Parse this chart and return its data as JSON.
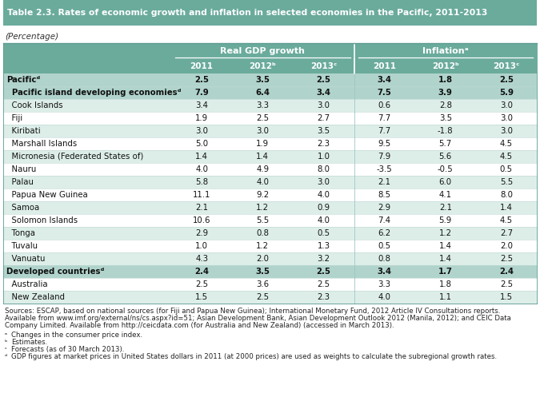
{
  "title": "Table 2.3. Rates of economic growth and inflation in selected economies in the Pacific, 2011-2013",
  "subtitle": "(Percentage)",
  "header_bg": "#6aab9c",
  "row_bg_light": "#ddeee9",
  "row_bg_white": "#ffffff",
  "bold_row_bg": "#b0d4cc",
  "col_headers": [
    "",
    "2011",
    "2012ᵇ",
    "2013ᶜ",
    "2011",
    "2012ᵇ",
    "2013ᶜ"
  ],
  "rows": [
    {
      "name": "Pacificᵈ",
      "bold": true,
      "indent": 0,
      "values": [
        "2.5",
        "3.5",
        "2.5",
        "3.4",
        "1.8",
        "2.5"
      ],
      "row_type": "bold_top"
    },
    {
      "name": "  Pacific island developing economiesᵈ",
      "bold": true,
      "indent": 1,
      "values": [
        "7.9",
        "6.4",
        "3.4",
        "7.5",
        "3.9",
        "5.9"
      ],
      "row_type": "bold_sub"
    },
    {
      "name": "  Cook Islands",
      "bold": false,
      "indent": 2,
      "values": [
        "3.4",
        "3.3",
        "3.0",
        "0.6",
        "2.8",
        "3.0"
      ],
      "row_type": "light"
    },
    {
      "name": "  Fiji",
      "bold": false,
      "indent": 2,
      "values": [
        "1.9",
        "2.5",
        "2.7",
        "7.7",
        "3.5",
        "3.0"
      ],
      "row_type": "white"
    },
    {
      "name": "  Kiribati",
      "bold": false,
      "indent": 2,
      "values": [
        "3.0",
        "3.0",
        "3.5",
        "7.7",
        "-1.8",
        "3.0"
      ],
      "row_type": "light"
    },
    {
      "name": "  Marshall Islands",
      "bold": false,
      "indent": 2,
      "values": [
        "5.0",
        "1.9",
        "2.3",
        "9.5",
        "5.7",
        "4.5"
      ],
      "row_type": "white"
    },
    {
      "name": "  Micronesia (Federated States of)",
      "bold": false,
      "indent": 2,
      "values": [
        "1.4",
        "1.4",
        "1.0",
        "7.9",
        "5.6",
        "4.5"
      ],
      "row_type": "light"
    },
    {
      "name": "  Nauru",
      "bold": false,
      "indent": 2,
      "values": [
        "4.0",
        "4.9",
        "8.0",
        "-3.5",
        "-0.5",
        "0.5"
      ],
      "row_type": "white"
    },
    {
      "name": "  Palau",
      "bold": false,
      "indent": 2,
      "values": [
        "5.8",
        "4.0",
        "3.0",
        "2.1",
        "6.0",
        "5.5"
      ],
      "row_type": "light"
    },
    {
      "name": "  Papua New Guinea",
      "bold": false,
      "indent": 2,
      "values": [
        "11.1",
        "9.2",
        "4.0",
        "8.5",
        "4.1",
        "8.0"
      ],
      "row_type": "white"
    },
    {
      "name": "  Samoa",
      "bold": false,
      "indent": 2,
      "values": [
        "2.1",
        "1.2",
        "0.9",
        "2.9",
        "2.1",
        "1.4"
      ],
      "row_type": "light"
    },
    {
      "name": "  Solomon Islands",
      "bold": false,
      "indent": 2,
      "values": [
        "10.6",
        "5.5",
        "4.0",
        "7.4",
        "5.9",
        "4.5"
      ],
      "row_type": "white"
    },
    {
      "name": "  Tonga",
      "bold": false,
      "indent": 2,
      "values": [
        "2.9",
        "0.8",
        "0.5",
        "6.2",
        "1.2",
        "2.7"
      ],
      "row_type": "light"
    },
    {
      "name": "  Tuvalu",
      "bold": false,
      "indent": 2,
      "values": [
        "1.0",
        "1.2",
        "1.3",
        "0.5",
        "1.4",
        "2.0"
      ],
      "row_type": "white"
    },
    {
      "name": "  Vanuatu",
      "bold": false,
      "indent": 2,
      "values": [
        "4.3",
        "2.0",
        "3.2",
        "0.8",
        "1.4",
        "2.5"
      ],
      "row_type": "light"
    },
    {
      "name": "Developed countriesᵈ",
      "bold": true,
      "indent": 0,
      "values": [
        "2.4",
        "3.5",
        "2.5",
        "3.4",
        "1.7",
        "2.4"
      ],
      "row_type": "bold_top"
    },
    {
      "name": "  Australia",
      "bold": false,
      "indent": 1,
      "values": [
        "2.5",
        "3.6",
        "2.5",
        "3.3",
        "1.8",
        "2.5"
      ],
      "row_type": "white"
    },
    {
      "name": "  New Zealand",
      "bold": false,
      "indent": 1,
      "values": [
        "1.5",
        "2.5",
        "2.3",
        "4.0",
        "1.1",
        "1.5"
      ],
      "row_type": "light"
    }
  ],
  "footnote_sources_bold": "Sources:",
  "footnote_sources_rest": " ESCAP, based on national sources (for Fiji and Papua New Guinea); International Monetary Fund, 2012 Article IV Consultations reports.\nAvailable from www.imf.org/external/ns/cs.aspx?id=51; Asian Development Bank, ",
  "footnote_sources_italic": "Asian Development Outlook 2012",
  "footnote_sources_end": " (Manila, 2012); and CEIC Data\nCompany Limited. Available from http://ceicdata.com (for Australia and New Zealand) (accessed in March 2013).",
  "footnote_a": "Changes in the consumer price index.",
  "footnote_b": "Estimates.",
  "footnote_c": "Forecasts (as of 30 March 2013).",
  "footnote_d": "GDP figures at market prices in United States dollars in 2011 (at 2000 prices) are used as weights to calculate the subregional growth rates.",
  "fig_width": 6.75,
  "fig_height": 5.07,
  "dpi": 100
}
